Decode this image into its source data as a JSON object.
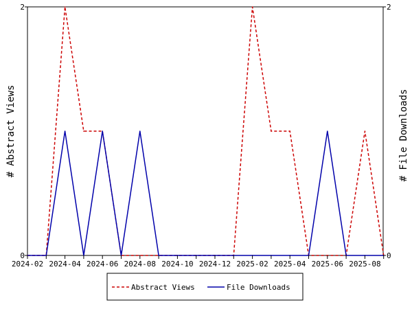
{
  "chart_data": {
    "type": "line",
    "x": [
      "2024-02",
      "2024-03",
      "2024-04",
      "2024-05",
      "2024-06",
      "2024-07",
      "2024-08",
      "2024-09",
      "2024-10",
      "2024-11",
      "2024-12",
      "2025-01",
      "2025-02",
      "2025-03",
      "2025-04",
      "2025-05",
      "2025-06",
      "2025-07",
      "2025-08",
      "2025-09"
    ],
    "x_tick_labels": [
      "2024-02",
      "2024-04",
      "2024-06",
      "2024-08",
      "2024-10",
      "2024-12",
      "2025-02",
      "2025-04",
      "2025-06",
      "2025-08"
    ],
    "y_left_label": "# Abstract Views",
    "y_right_label": "# File Downloads",
    "y_left_ticks": [
      "0",
      "2"
    ],
    "y_right_ticks": [
      "0",
      "2"
    ],
    "ylim_left": [
      0,
      2
    ],
    "ylim_right": [
      0,
      2
    ],
    "grid": false,
    "legend_position": "bottom",
    "series": [
      {
        "name": "Abstract Views",
        "axis": "left",
        "color": "#cc0000",
        "dash": "dashed",
        "values": [
          0,
          0,
          2,
          1,
          1,
          0,
          0,
          0,
          0,
          0,
          0,
          0,
          2,
          1,
          1,
          0,
          0,
          0,
          1,
          0
        ]
      },
      {
        "name": "File Downloads",
        "axis": "right",
        "color": "#0000aa",
        "dash": "solid",
        "values": [
          0,
          0,
          1,
          0,
          1,
          0,
          1,
          0,
          0,
          0,
          0,
          0,
          0,
          0,
          0,
          0,
          1,
          0,
          0,
          0
        ]
      }
    ]
  }
}
